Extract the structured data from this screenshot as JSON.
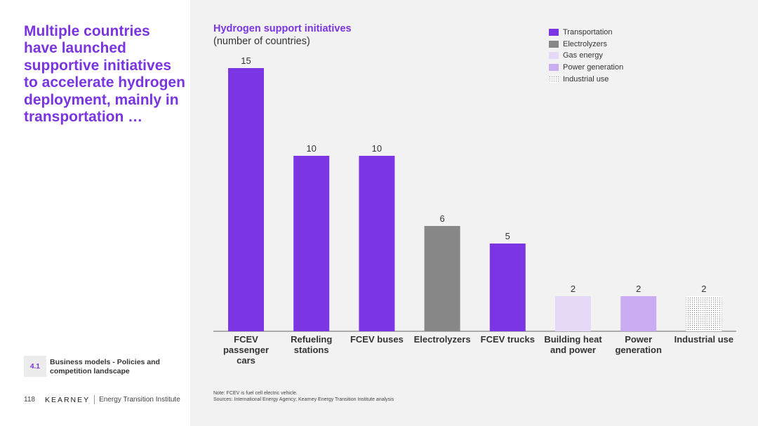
{
  "headline": "Multiple countries have launched supportive initiatives to accelerate hydrogen deployment, mainly in transportation …",
  "section": {
    "number": "4.1",
    "label": "Business models - Policies and competition landscape"
  },
  "footer": {
    "page": "118",
    "brand": "KEARNEY",
    "institute": "Energy Transition Institute"
  },
  "note": {
    "line1": "Note: FCEV is fuel cell electric vehicle.",
    "line2": "Sources: International Energy Agency; Kearney Energy Transition Institute analysis"
  },
  "colors": {
    "accent": "#7a34e0",
    "transportation": "#7b35e3",
    "electrolyzers": "#878787",
    "gas_energy": "#e6d9f8",
    "power_generation": "#c9acf2",
    "industrial_use": "#ffffff"
  },
  "chart_data": {
    "type": "bar",
    "title": "Hydrogen support initiatives",
    "subtitle": "(number of countries)",
    "categories": [
      "FCEV passenger cars",
      "Refueling stations",
      "FCEV buses",
      "Electrolyzers",
      "FCEV trucks",
      "Building heat and power",
      "Power generation",
      "Industrial use"
    ],
    "values": [
      15,
      10,
      10,
      6,
      5,
      2,
      2,
      2
    ],
    "bar_groups": [
      "transportation",
      "transportation",
      "transportation",
      "electrolyzers",
      "transportation",
      "gas_energy",
      "power_generation",
      "industrial_use"
    ],
    "legend": [
      {
        "key": "transportation",
        "label": "Transportation"
      },
      {
        "key": "electrolyzers",
        "label": "Electrolyzers"
      },
      {
        "key": "gas_energy",
        "label": "Gas energy"
      },
      {
        "key": "power_generation",
        "label": "Power generation"
      },
      {
        "key": "industrial_use",
        "label": "Industrial use",
        "pattern": "dotted"
      }
    ],
    "ylim": [
      0,
      15
    ],
    "grid": false,
    "legend_position": "top-right"
  }
}
